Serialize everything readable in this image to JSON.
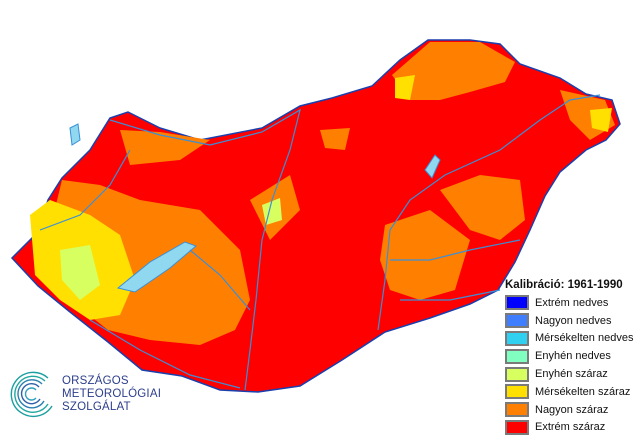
{
  "legend": {
    "title": "Kalibráció: 1961-1990",
    "items": [
      {
        "label": "Extrém nedves",
        "color": "#0000ff"
      },
      {
        "label": "Nagyon nedves",
        "color": "#3f7fff"
      },
      {
        "label": "Mérsékelten nedves",
        "color": "#2fd0f0"
      },
      {
        "label": "Enyhén nedves",
        "color": "#80ffc0"
      },
      {
        "label": "Enyhén száraz",
        "color": "#d8ff60"
      },
      {
        "label": "Mérsékelten száraz",
        "color": "#ffe000"
      },
      {
        "label": "Nagyon száraz",
        "color": "#ff8000"
      },
      {
        "label": "Extrém száraz",
        "color": "#ff0000"
      }
    ]
  },
  "logo": {
    "line1": "ORSZÁGOS",
    "line2": "METEOROLÓGIAI",
    "line3": "SZOLGÁLAT"
  },
  "colors": {
    "river": "#3a8fd8",
    "lake": "#8fd8f0",
    "border": "#1a3fae"
  }
}
